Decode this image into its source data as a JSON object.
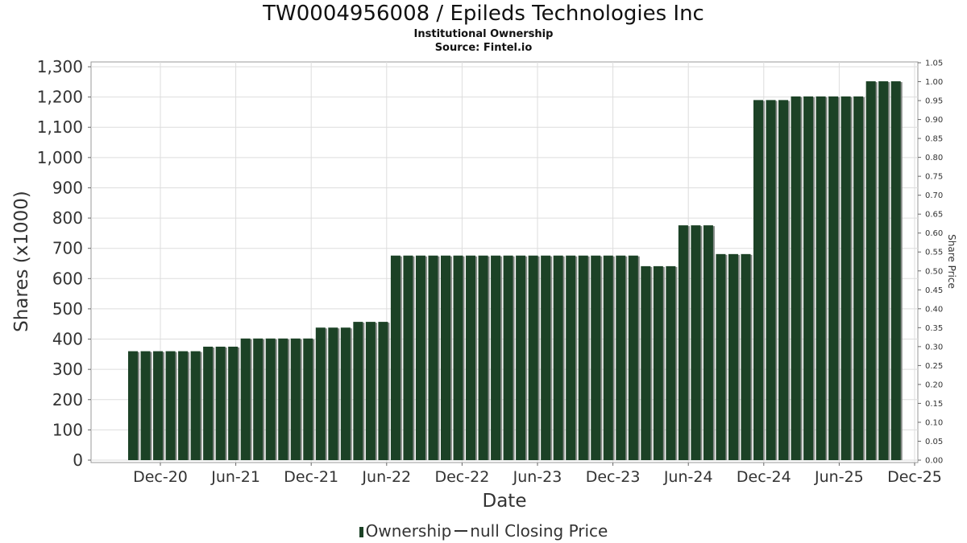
{
  "title": "TW0004956008 / Epileds Technologies Inc",
  "subtitle_1": "Institutional Ownership",
  "subtitle_2": "Source: Fintel.io",
  "legend": {
    "ownership_label": "Ownership",
    "price_label": "null Closing Price"
  },
  "colors": {
    "bar": "#1c4226",
    "bar_shadow": "#858a86",
    "grid": "#dddddd",
    "axis": "#999999"
  },
  "chart_data": {
    "type": "bar",
    "xlabel": "Date",
    "ylabel": "Shares (x1000)",
    "y2label": "Share Price",
    "ylim": [
      0,
      1300
    ],
    "y2lim": [
      0,
      1.05
    ],
    "grid": true,
    "legend_position": "bottom-center",
    "yticks": [
      "0",
      "100",
      "200",
      "300",
      "400",
      "500",
      "600",
      "700",
      "800",
      "900",
      "1,000",
      "1,100",
      "1,200",
      "1,300"
    ],
    "y2ticks": [
      "0.00",
      "0.05",
      "0.10",
      "0.15",
      "0.20",
      "0.25",
      "0.30",
      "0.35",
      "0.40",
      "0.45",
      "0.50",
      "0.55",
      "0.60",
      "0.65",
      "0.70",
      "0.75",
      "0.80",
      "0.85",
      "0.90",
      "0.95",
      "1.00",
      "1.05"
    ],
    "xticks": [
      "Dec-20",
      "Jun-21",
      "Dec-21",
      "Jun-22",
      "Dec-22",
      "Jun-23",
      "Dec-23",
      "Jun-24",
      "Dec-24",
      "Jun-25",
      "Dec-25"
    ],
    "series": [
      {
        "name": "Ownership",
        "values": [
          360,
          360,
          360,
          360,
          360,
          360,
          375,
          375,
          375,
          402,
          402,
          402,
          402,
          402,
          402,
          438,
          438,
          438,
          457,
          457,
          457,
          676,
          676,
          676,
          676,
          676,
          676,
          676,
          676,
          676,
          676,
          676,
          676,
          676,
          676,
          676,
          676,
          676,
          676,
          676,
          676,
          641,
          641,
          641,
          776,
          776,
          776,
          681,
          681,
          681,
          1190,
          1190,
          1190,
          1202,
          1202,
          1202,
          1202,
          1202,
          1202,
          1252,
          1252,
          1252
        ]
      }
    ]
  }
}
